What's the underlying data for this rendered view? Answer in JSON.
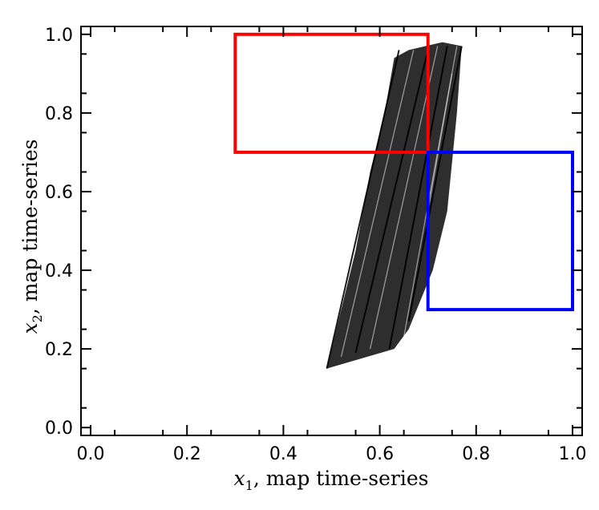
{
  "chart_data": {
    "type": "scatter",
    "title": "",
    "xlabel": {
      "var": "x",
      "sub": "1",
      "text": ", map time-series"
    },
    "ylabel": {
      "var": "x",
      "sub": "2",
      "text": ", map time-series"
    },
    "xlim": [
      -0.02,
      1.02
    ],
    "ylim": [
      -0.02,
      1.02
    ],
    "xticks": [
      0.0,
      0.2,
      0.4,
      0.6,
      0.8,
      1.0
    ],
    "yticks": [
      0.0,
      0.2,
      0.4,
      0.6,
      0.8,
      1.0
    ],
    "xtick_labels": [
      "0.0",
      "0.2",
      "0.4",
      "0.6",
      "0.8",
      "1.0"
    ],
    "ytick_labels": [
      "0.0",
      "0.2",
      "0.4",
      "0.6",
      "0.8",
      "1.0"
    ],
    "grid": false,
    "attractor": {
      "color": "#000000",
      "description_region": "dense chaotic attractor band",
      "outline": [
        [
          0.49,
          0.15
        ],
        [
          0.63,
          0.2
        ],
        [
          0.66,
          0.25
        ],
        [
          0.71,
          0.4
        ],
        [
          0.74,
          0.55
        ],
        [
          0.76,
          0.8
        ],
        [
          0.77,
          0.97
        ],
        [
          0.73,
          0.98
        ],
        [
          0.66,
          0.96
        ],
        [
          0.63,
          0.94
        ],
        [
          0.61,
          0.8
        ],
        [
          0.58,
          0.65
        ],
        [
          0.55,
          0.45
        ],
        [
          0.52,
          0.3
        ],
        [
          0.5,
          0.2
        ]
      ],
      "strands": [
        {
          "start": [
            0.49,
            0.15
          ],
          "end": [
            0.64,
            0.96
          ]
        },
        {
          "start": [
            0.52,
            0.18
          ],
          "end": [
            0.67,
            0.96
          ]
        },
        {
          "start": [
            0.55,
            0.19
          ],
          "end": [
            0.7,
            0.96
          ]
        },
        {
          "start": [
            0.58,
            0.2
          ],
          "end": [
            0.72,
            0.97
          ]
        },
        {
          "start": [
            0.62,
            0.2
          ],
          "end": [
            0.74,
            0.97
          ]
        },
        {
          "start": [
            0.65,
            0.23
          ],
          "end": [
            0.76,
            0.97
          ]
        },
        {
          "start": [
            0.66,
            0.27
          ],
          "end": [
            0.77,
            0.97
          ]
        },
        {
          "start": [
            0.7,
            0.55
          ],
          "end": [
            0.75,
            0.9
          ]
        }
      ]
    },
    "rectangles": [
      {
        "name": "red-region",
        "color": "#ff0000",
        "x": [
          0.3,
          0.7
        ],
        "y": [
          0.7,
          1.0
        ]
      },
      {
        "name": "blue-region",
        "color": "#0000ff",
        "x": [
          0.7,
          1.0
        ],
        "y": [
          0.3,
          0.7
        ]
      }
    ]
  }
}
